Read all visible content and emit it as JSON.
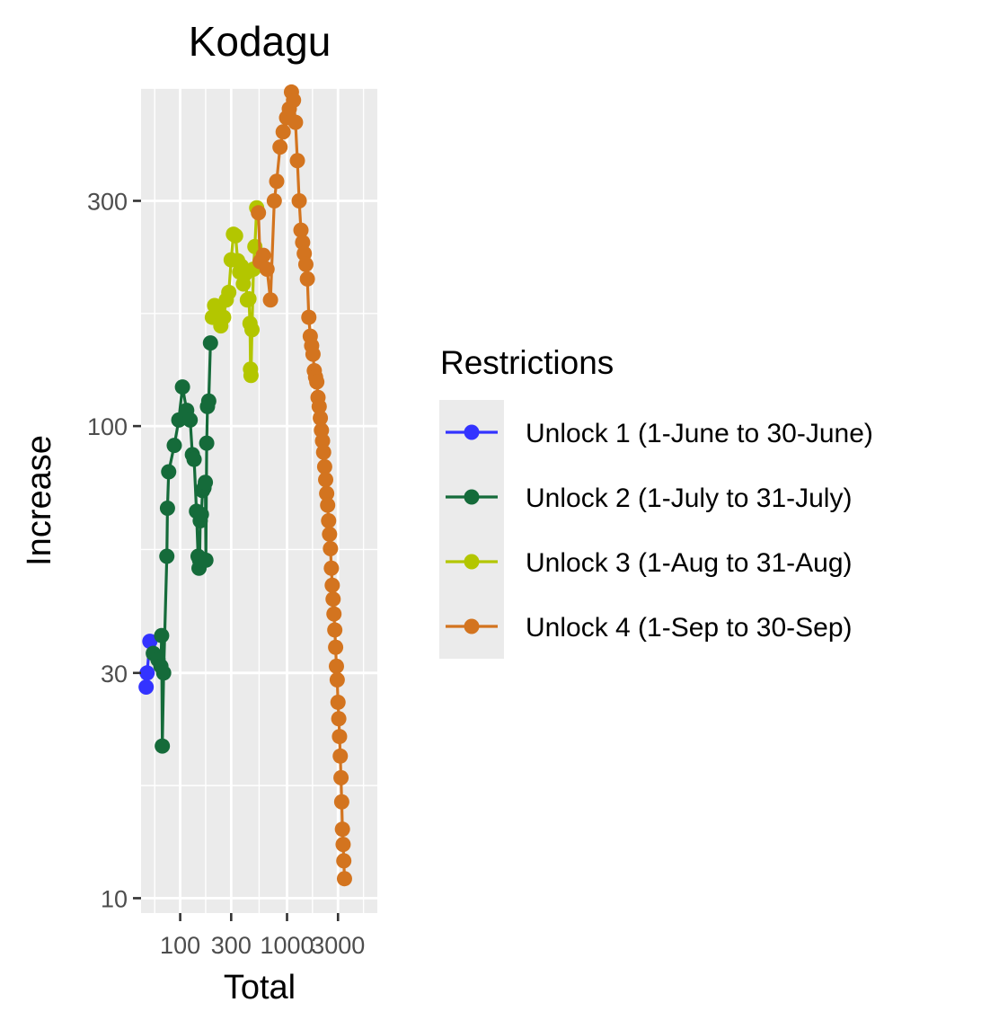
{
  "chart_data": {
    "type": "line",
    "title": "Kodagu",
    "xlabel": "Total",
    "ylabel": "Increase",
    "x_scale": "log10",
    "y_scale": "log10",
    "xlim": [
      43,
      7000
    ],
    "ylim": [
      9.3,
      520
    ],
    "x_ticks": [
      100,
      300,
      1000,
      3000
    ],
    "x_tick_labels": [
      "100",
      "300",
      "1000",
      "3000"
    ],
    "y_ticks": [
      10,
      30,
      100,
      300
    ],
    "y_tick_labels": [
      "10",
      "30",
      "100",
      "300"
    ],
    "grid": true,
    "legend": {
      "title": "Restrictions",
      "position": "right",
      "entries": [
        "Unlock 1 (1-June to 30-June)",
        "Unlock 2 (1-July to 31-July)",
        "Unlock 3 (1-Aug to 31-Aug)",
        "Unlock 4 (1-Sep to 30-Sep)"
      ]
    },
    "series": [
      {
        "name": "Unlock 1 (1-June to 30-June)",
        "color": "#3333ff",
        "points": [
          [
            48,
            28
          ],
          [
            49,
            30
          ],
          [
            52,
            35
          ]
        ]
      },
      {
        "name": "Unlock 2 (1-July to 31-July)",
        "color": "#156b3a",
        "points": [
          [
            56,
            33
          ],
          [
            62,
            32
          ],
          [
            66,
            31
          ],
          [
            67,
            36
          ],
          [
            68,
            21
          ],
          [
            70,
            30
          ],
          [
            75,
            53
          ],
          [
            76,
            67
          ],
          [
            78,
            80
          ],
          [
            88,
            91
          ],
          [
            97,
            103
          ],
          [
            105,
            121
          ],
          [
            115,
            108
          ],
          [
            124,
            103
          ],
          [
            130,
            87
          ],
          [
            135,
            85
          ],
          [
            142,
            66
          ],
          [
            147,
            53
          ],
          [
            150,
            50
          ],
          [
            152,
            52
          ],
          [
            154,
            63
          ],
          [
            158,
            65
          ],
          [
            162,
            73
          ],
          [
            167,
            74
          ],
          [
            172,
            76
          ],
          [
            174,
            52
          ],
          [
            177,
            92
          ],
          [
            180,
            110
          ],
          [
            185,
            113
          ],
          [
            192,
            150
          ]
        ]
      },
      {
        "name": "Unlock 3 (1-Aug to 31-Aug)",
        "color": "#b3c600",
        "points": [
          [
            200,
            170
          ],
          [
            210,
            180
          ],
          [
            225,
            175
          ],
          [
            240,
            163
          ],
          [
            255,
            170
          ],
          [
            270,
            185
          ],
          [
            285,
            192
          ],
          [
            300,
            225
          ],
          [
            315,
            255
          ],
          [
            330,
            253
          ],
          [
            345,
            224
          ],
          [
            360,
            212
          ],
          [
            375,
            218
          ],
          [
            390,
            200
          ],
          [
            405,
            210
          ],
          [
            425,
            185
          ],
          [
            440,
            186
          ],
          [
            450,
            165
          ],
          [
            455,
            132
          ],
          [
            460,
            128
          ],
          [
            470,
            160
          ],
          [
            485,
            215
          ],
          [
            500,
            240
          ],
          [
            520,
            290
          ]
        ]
      },
      {
        "name": "Unlock 4 (1-Sep to 30-Sep)",
        "color": "#d3741f",
        "points": [
          [
            540,
            283
          ],
          [
            560,
            223
          ],
          [
            600,
            230
          ],
          [
            650,
            215
          ],
          [
            700,
            185
          ],
          [
            760,
            300
          ],
          [
            800,
            330
          ],
          [
            860,
            390
          ],
          [
            920,
            420
          ],
          [
            990,
            450
          ],
          [
            1050,
            470
          ],
          [
            1100,
            510
          ],
          [
            1150,
            490
          ],
          [
            1200,
            440
          ],
          [
            1250,
            365
          ],
          [
            1300,
            300
          ],
          [
            1350,
            260
          ],
          [
            1400,
            245
          ],
          [
            1450,
            232
          ],
          [
            1500,
            220
          ],
          [
            1550,
            205
          ],
          [
            1600,
            170
          ],
          [
            1650,
            155
          ],
          [
            1700,
            148
          ],
          [
            1750,
            142
          ],
          [
            1800,
            131
          ],
          [
            1850,
            127
          ],
          [
            1900,
            124
          ],
          [
            1950,
            115
          ],
          [
            2000,
            110
          ],
          [
            2050,
            104
          ],
          [
            2100,
            98
          ],
          [
            2150,
            93
          ],
          [
            2200,
            88
          ],
          [
            2250,
            82
          ],
          [
            2300,
            77
          ],
          [
            2350,
            72
          ],
          [
            2400,
            68
          ],
          [
            2450,
            63
          ],
          [
            2500,
            59
          ],
          [
            2550,
            55
          ],
          [
            2600,
            50
          ],
          [
            2650,
            46
          ],
          [
            2700,
            43
          ],
          [
            2750,
            40
          ],
          [
            2800,
            37
          ],
          [
            2850,
            34
          ],
          [
            2900,
            31
          ],
          [
            2950,
            29
          ],
          [
            3000,
            26
          ],
          [
            3050,
            24
          ],
          [
            3100,
            22
          ],
          [
            3150,
            20
          ],
          [
            3200,
            18
          ],
          [
            3250,
            16
          ],
          [
            3300,
            14
          ],
          [
            3350,
            13
          ],
          [
            3400,
            12
          ],
          [
            3450,
            11
          ]
        ]
      }
    ]
  }
}
